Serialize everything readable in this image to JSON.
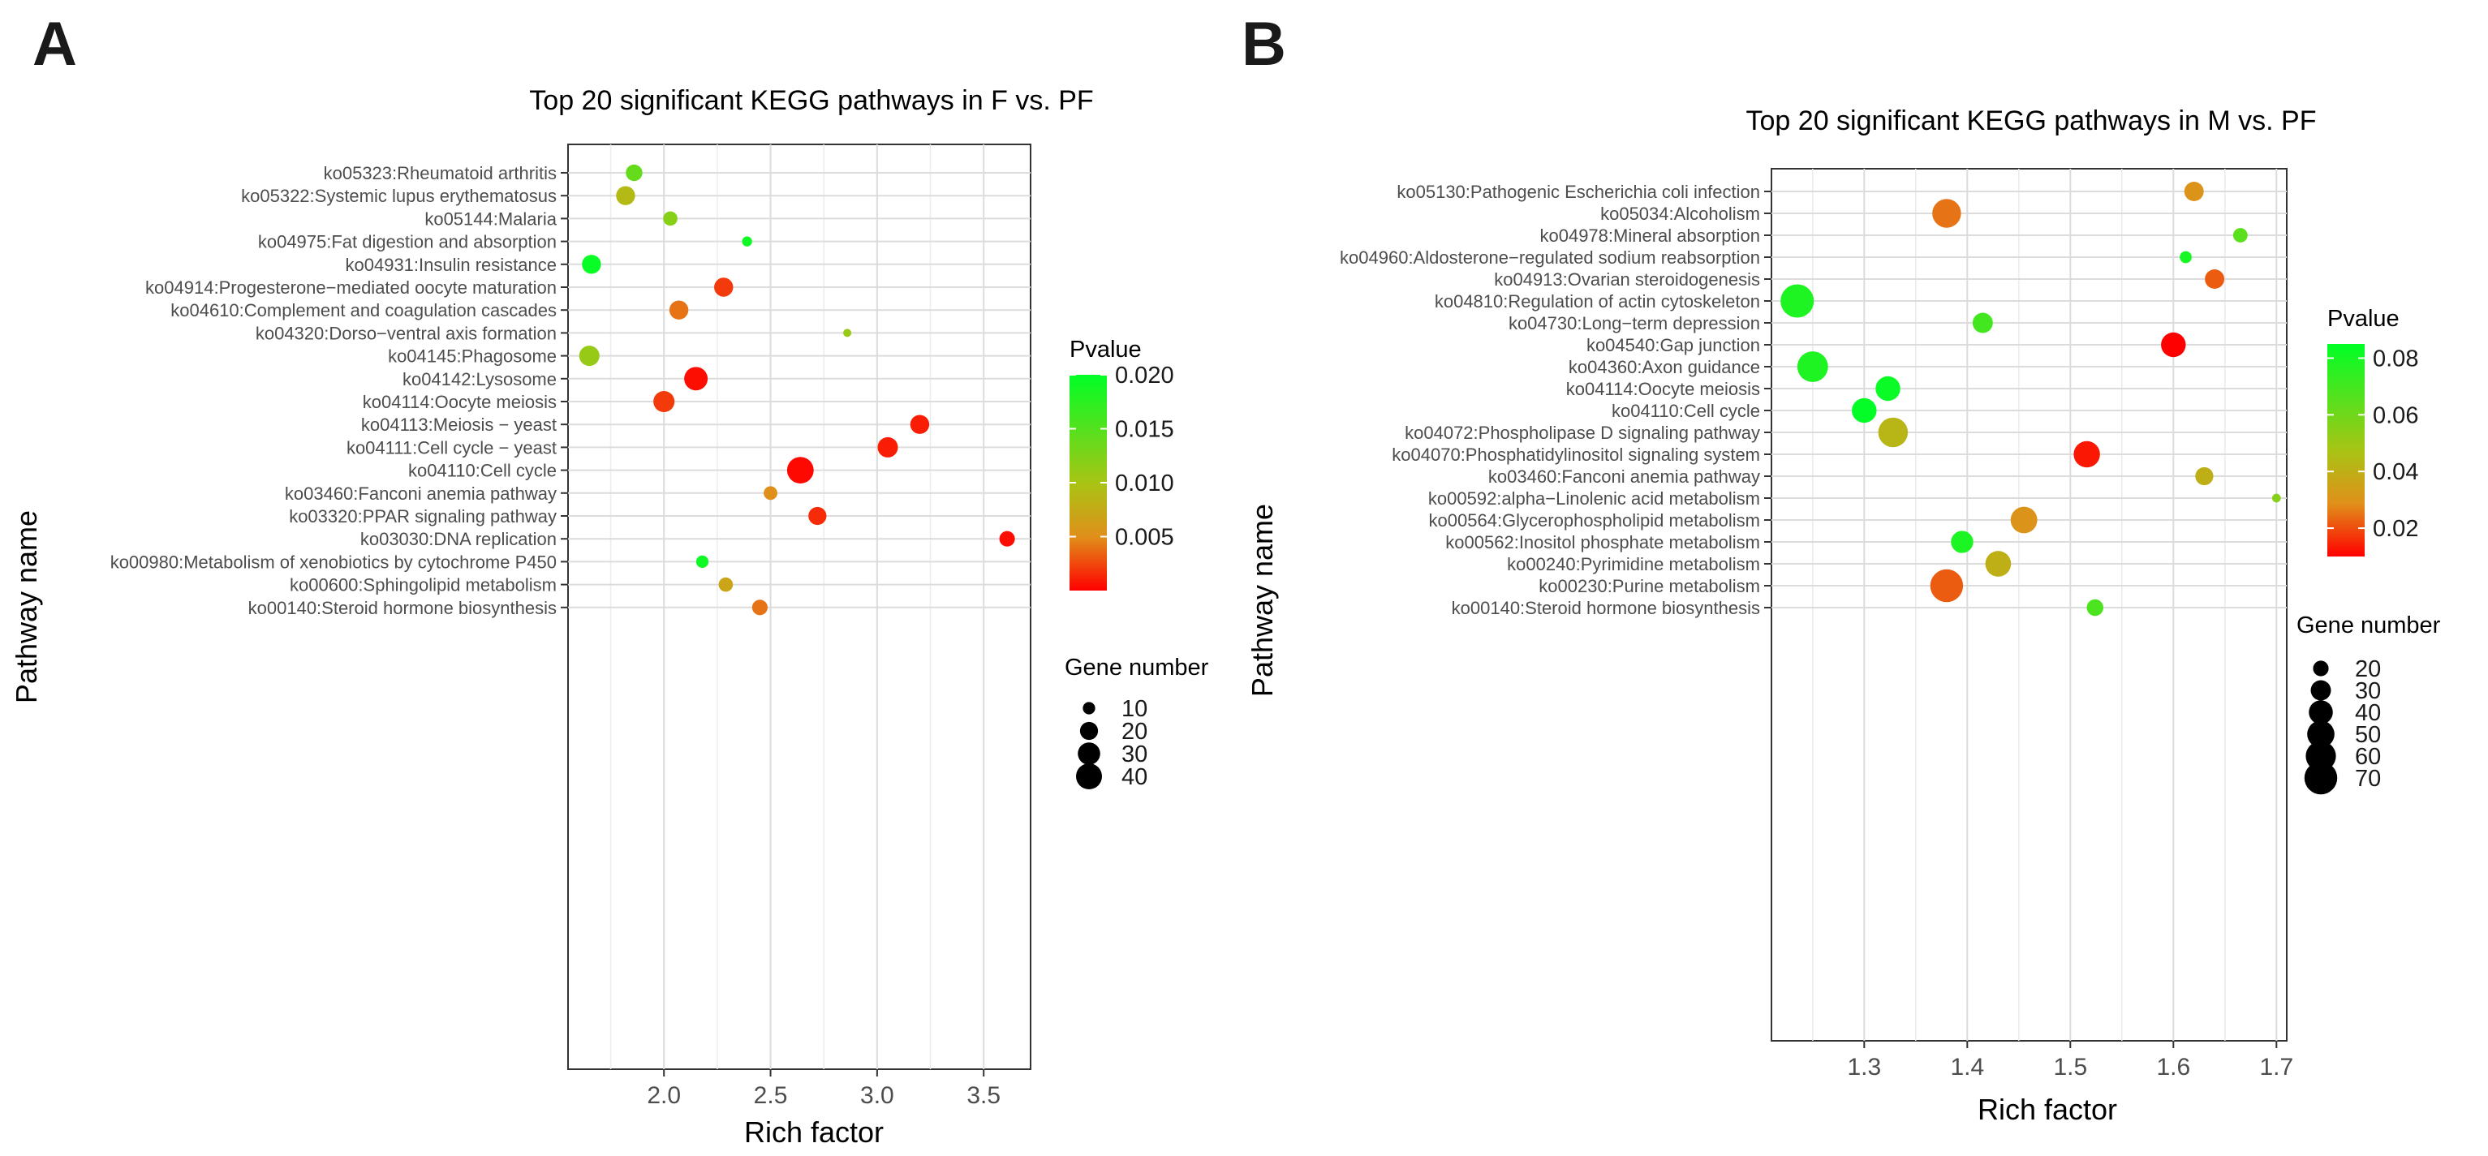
{
  "chart_data": [
    {
      "panel_label": "A",
      "type": "scatter",
      "title": "Top 20 significant KEGG pathways in F vs. PF",
      "xlabel": "Rich factor",
      "ylabel": "Pathway name",
      "xlim": [
        1.55,
        3.72
      ],
      "x_ticks": [
        2.0,
        2.5,
        3.0,
        3.5
      ],
      "x_tick_labels": [
        "2.0",
        "2.5",
        "3.0",
        "3.5"
      ],
      "pvalue_range": [
        0.0,
        0.02
      ],
      "pvalue_legend_title": "Pvalue",
      "pvalue_ticks": [
        0.02,
        0.015,
        0.01,
        0.005
      ],
      "pvalue_tick_labels": [
        "0.020",
        "0.015",
        "0.010",
        "0.005"
      ],
      "size_legend_title": "Gene number",
      "size_legend": [
        10,
        20,
        30,
        40
      ],
      "size_legend_labels": [
        "10",
        "20",
        "30",
        "40"
      ],
      "size_range": [
        5,
        45
      ],
      "points": [
        {
          "pathway": "ko05323:Rheumatoid arthritis",
          "x": 1.86,
          "pvalue": 0.014,
          "genes": 17
        },
        {
          "pathway": "ko05322:Systemic lupus erythematosus",
          "x": 1.82,
          "pvalue": 0.009,
          "genes": 22
        },
        {
          "pathway": "ko05144:Malaria",
          "x": 2.03,
          "pvalue": 0.012,
          "genes": 13
        },
        {
          "pathway": "ko04975:Fat digestion and absorption",
          "x": 2.39,
          "pvalue": 0.019,
          "genes": 7
        },
        {
          "pathway": "ko04931:Insulin resistance",
          "x": 1.66,
          "pvalue": 0.0195,
          "genes": 22
        },
        {
          "pathway": "ko04914:Progesterone-mediated oocyte maturation",
          "x": 2.28,
          "pvalue": 0.002,
          "genes": 22
        },
        {
          "pathway": "ko04610:Complement and coagulation cascades",
          "x": 2.07,
          "pvalue": 0.004,
          "genes": 22
        },
        {
          "pathway": "ko04320:Dorso-ventral axis formation",
          "x": 2.86,
          "pvalue": 0.011,
          "genes": 4
        },
        {
          "pathway": "ko04145:Phagosome",
          "x": 1.65,
          "pvalue": 0.011,
          "genes": 25
        },
        {
          "pathway": "ko04142:Lysosome",
          "x": 2.15,
          "pvalue": 0.0005,
          "genes": 33
        },
        {
          "pathway": "ko04114:Oocyte meiosis",
          "x": 2.0,
          "pvalue": 0.002,
          "genes": 27
        },
        {
          "pathway": "ko04113:Meiosis - yeast",
          "x": 3.2,
          "pvalue": 0.001,
          "genes": 22
        },
        {
          "pathway": "ko04111:Cell cycle - yeast",
          "x": 3.05,
          "pvalue": 0.001,
          "genes": 25
        },
        {
          "pathway": "ko04110:Cell cycle",
          "x": 2.64,
          "pvalue": 0.0003,
          "genes": 42
        },
        {
          "pathway": "ko03460:Fanconi anemia pathway",
          "x": 2.5,
          "pvalue": 0.005,
          "genes": 12
        },
        {
          "pathway": "ko03320:PPAR signaling pathway",
          "x": 2.72,
          "pvalue": 0.0015,
          "genes": 20
        },
        {
          "pathway": "ko03030:DNA replication",
          "x": 3.61,
          "pvalue": 0.0005,
          "genes": 15
        },
        {
          "pathway": "ko00980:Metabolism of xenobiotics by cytochrome P450",
          "x": 2.18,
          "pvalue": 0.019,
          "genes": 10
        },
        {
          "pathway": "ko00600:Sphingolipid metabolism",
          "x": 2.29,
          "pvalue": 0.007,
          "genes": 13
        },
        {
          "pathway": "ko00140:Steroid hormone biosynthesis",
          "x": 2.45,
          "pvalue": 0.004,
          "genes": 15
        }
      ]
    },
    {
      "panel_label": "B",
      "type": "scatter",
      "title": "Top 20 significant KEGG pathways in M vs. PF",
      "xlabel": "Rich factor",
      "ylabel": "Pathway name",
      "xlim": [
        1.21,
        1.71
      ],
      "x_ticks": [
        1.3,
        1.4,
        1.5,
        1.6,
        1.7
      ],
      "x_tick_labels": [
        "1.3",
        "1.4",
        "1.5",
        "1.6",
        "1.7"
      ],
      "pvalue_range": [
        0.01,
        0.085
      ],
      "pvalue_legend_title": "Pvalue",
      "pvalue_ticks": [
        0.08,
        0.06,
        0.04,
        0.02
      ],
      "pvalue_tick_labels": [
        "0.08",
        "0.06",
        "0.04",
        "0.02"
      ],
      "size_legend_title": "Gene number",
      "size_legend": [
        20,
        30,
        40,
        50,
        60,
        70
      ],
      "size_legend_labels": [
        "20",
        "30",
        "40",
        "50",
        "60",
        "70"
      ],
      "size_range": [
        8,
        75
      ],
      "points": [
        {
          "pathway": "ko05130:Pathogenic Escherichia coli infection",
          "x": 1.62,
          "pvalue": 0.03,
          "genes": 28
        },
        {
          "pathway": "ko05034:Alcoholism",
          "x": 1.38,
          "pvalue": 0.025,
          "genes": 55
        },
        {
          "pathway": "ko04978:Mineral absorption",
          "x": 1.665,
          "pvalue": 0.065,
          "genes": 18
        },
        {
          "pathway": "ko04960:Aldosterone-regulated sodium reabsorption",
          "x": 1.612,
          "pvalue": 0.08,
          "genes": 14
        },
        {
          "pathway": "ko04913:Ovarian steroidogenesis",
          "x": 1.64,
          "pvalue": 0.022,
          "genes": 28
        },
        {
          "pathway": "ko04810:Regulation of actin cytoskeleton",
          "x": 1.235,
          "pvalue": 0.078,
          "genes": 72
        },
        {
          "pathway": "ko04730:Long-term depression",
          "x": 1.415,
          "pvalue": 0.07,
          "genes": 30
        },
        {
          "pathway": "ko04540:Gap junction",
          "x": 1.6,
          "pvalue": 0.01,
          "genes": 42
        },
        {
          "pathway": "ko04360:Axon guidance",
          "x": 1.25,
          "pvalue": 0.078,
          "genes": 62
        },
        {
          "pathway": "ko04114:Oocyte meiosis",
          "x": 1.323,
          "pvalue": 0.083,
          "genes": 42
        },
        {
          "pathway": "ko04110:Cell cycle",
          "x": 1.3,
          "pvalue": 0.084,
          "genes": 42
        },
        {
          "pathway": "ko04072:Phospholipase D signaling pathway",
          "x": 1.328,
          "pvalue": 0.042,
          "genes": 58
        },
        {
          "pathway": "ko04070:Phosphatidylinositol signaling system",
          "x": 1.516,
          "pvalue": 0.013,
          "genes": 47
        },
        {
          "pathway": "ko03460:Fanconi anemia pathway",
          "x": 1.63,
          "pvalue": 0.04,
          "genes": 25
        },
        {
          "pathway": "ko00592:alpha-Linolenic acid metabolism",
          "x": 1.7,
          "pvalue": 0.055,
          "genes": 10
        },
        {
          "pathway": "ko00564:Glycerophospholipid metabolism",
          "x": 1.455,
          "pvalue": 0.03,
          "genes": 48
        },
        {
          "pathway": "ko00562:Inositol phosphate metabolism",
          "x": 1.395,
          "pvalue": 0.079,
          "genes": 35
        },
        {
          "pathway": "ko00240:Pyrimidine metabolism",
          "x": 1.43,
          "pvalue": 0.04,
          "genes": 45
        },
        {
          "pathway": "ko00230:Purine metabolism",
          "x": 1.38,
          "pvalue": 0.022,
          "genes": 70
        },
        {
          "pathway": "ko00140:Steroid hormone biosynthesis",
          "x": 1.524,
          "pvalue": 0.068,
          "genes": 22
        }
      ]
    }
  ]
}
